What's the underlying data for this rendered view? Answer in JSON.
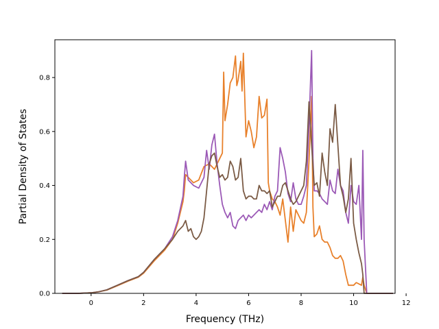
{
  "chart_data": {
    "type": "line",
    "title": "",
    "xlabel": "Frequency (THz)",
    "ylabel": "Partial Density of States",
    "xlim": [
      -1.38,
      11.58
    ],
    "ylim": [
      0,
      0.94
    ],
    "xticks": [
      0,
      2,
      4,
      6,
      8,
      10,
      12
    ],
    "yticks": [
      0.0,
      0.2,
      0.4,
      0.6,
      0.8
    ],
    "ytick_labels": [
      "0.0",
      "0.2",
      "0.4",
      "0.6",
      "0.8"
    ],
    "grid": false,
    "legend": "none",
    "series": [
      {
        "color": "#e8802a",
        "x": [
          -1.1,
          -0.5,
          0.0,
          0.3,
          0.6,
          1.0,
          1.4,
          1.8,
          2.0,
          2.4,
          2.8,
          3.1,
          3.3,
          3.5,
          3.55,
          3.6,
          3.7,
          3.9,
          4.1,
          4.3,
          4.5,
          4.7,
          4.9,
          5.0,
          5.05,
          5.1,
          5.2,
          5.3,
          5.4,
          5.5,
          5.55,
          5.6,
          5.7,
          5.75,
          5.8,
          5.9,
          6.0,
          6.1,
          6.2,
          6.3,
          6.4,
          6.5,
          6.6,
          6.7,
          6.75,
          6.8,
          6.9,
          7.0,
          7.1,
          7.2,
          7.3,
          7.4,
          7.5,
          7.6,
          7.7,
          7.8,
          7.9,
          8.0,
          8.1,
          8.2,
          8.3,
          8.4,
          8.45,
          8.5,
          8.6,
          8.7,
          8.8,
          8.9,
          9.0,
          9.1,
          9.2,
          9.3,
          9.4,
          9.5,
          9.6,
          9.7,
          9.8,
          9.9,
          10.0,
          10.1,
          10.2,
          10.3,
          10.35,
          10.4,
          10.5,
          10.6,
          11.0,
          11.5
        ],
        "y": [
          0.0,
          0.0,
          0.002,
          0.006,
          0.012,
          0.028,
          0.045,
          0.06,
          0.075,
          0.12,
          0.16,
          0.2,
          0.26,
          0.34,
          0.38,
          0.44,
          0.43,
          0.41,
          0.42,
          0.47,
          0.48,
          0.46,
          0.5,
          0.52,
          0.82,
          0.64,
          0.7,
          0.78,
          0.8,
          0.88,
          0.77,
          0.79,
          0.86,
          0.75,
          0.89,
          0.58,
          0.64,
          0.6,
          0.54,
          0.58,
          0.73,
          0.65,
          0.66,
          0.72,
          0.41,
          0.38,
          0.35,
          0.34,
          0.32,
          0.29,
          0.35,
          0.27,
          0.19,
          0.32,
          0.23,
          0.31,
          0.29,
          0.27,
          0.26,
          0.3,
          0.49,
          0.73,
          0.32,
          0.21,
          0.22,
          0.25,
          0.2,
          0.19,
          0.19,
          0.17,
          0.14,
          0.13,
          0.13,
          0.14,
          0.12,
          0.07,
          0.03,
          0.03,
          0.03,
          0.04,
          0.035,
          0.03,
          0.06,
          0.03,
          0.0,
          0.0,
          0.0,
          0.0
        ]
      },
      {
        "color": "#9b59b6",
        "x": [
          -1.1,
          -0.5,
          0.0,
          0.3,
          0.6,
          1.0,
          1.4,
          1.8,
          2.0,
          2.4,
          2.8,
          3.1,
          3.3,
          3.5,
          3.55,
          3.6,
          3.7,
          3.9,
          4.1,
          4.3,
          4.4,
          4.5,
          4.6,
          4.7,
          4.8,
          4.9,
          5.0,
          5.1,
          5.2,
          5.3,
          5.4,
          5.5,
          5.6,
          5.7,
          5.8,
          5.9,
          6.0,
          6.1,
          6.2,
          6.3,
          6.4,
          6.5,
          6.6,
          6.7,
          6.8,
          6.9,
          7.0,
          7.1,
          7.2,
          7.3,
          7.4,
          7.5,
          7.6,
          7.7,
          7.8,
          7.9,
          8.0,
          8.1,
          8.2,
          8.3,
          8.4,
          8.45,
          8.5,
          8.6,
          8.7,
          8.8,
          8.9,
          9.0,
          9.1,
          9.2,
          9.3,
          9.4,
          9.5,
          9.6,
          9.7,
          9.8,
          9.9,
          10.0,
          10.1,
          10.2,
          10.3,
          10.35,
          10.4,
          10.5,
          10.6,
          11.0,
          11.5
        ],
        "y": [
          0.0,
          0.0,
          0.002,
          0.006,
          0.013,
          0.03,
          0.047,
          0.062,
          0.078,
          0.125,
          0.165,
          0.21,
          0.27,
          0.36,
          0.43,
          0.49,
          0.42,
          0.4,
          0.39,
          0.43,
          0.53,
          0.46,
          0.55,
          0.59,
          0.48,
          0.4,
          0.33,
          0.3,
          0.28,
          0.3,
          0.25,
          0.24,
          0.27,
          0.28,
          0.29,
          0.27,
          0.29,
          0.28,
          0.29,
          0.3,
          0.31,
          0.3,
          0.33,
          0.31,
          0.34,
          0.31,
          0.36,
          0.38,
          0.54,
          0.5,
          0.45,
          0.37,
          0.34,
          0.41,
          0.35,
          0.33,
          0.33,
          0.36,
          0.4,
          0.62,
          0.9,
          0.5,
          0.38,
          0.38,
          0.37,
          0.35,
          0.34,
          0.33,
          0.42,
          0.38,
          0.37,
          0.46,
          0.4,
          0.38,
          0.3,
          0.26,
          0.4,
          0.34,
          0.33,
          0.4,
          0.2,
          0.53,
          0.2,
          0.0,
          0.0,
          0.0,
          0.0
        ]
      },
      {
        "color": "#7a5a44",
        "x": [
          -1.1,
          -0.5,
          0.0,
          0.3,
          0.6,
          1.0,
          1.4,
          1.8,
          2.0,
          2.4,
          2.8,
          3.1,
          3.3,
          3.5,
          3.55,
          3.6,
          3.7,
          3.8,
          3.9,
          4.0,
          4.1,
          4.2,
          4.3,
          4.4,
          4.5,
          4.6,
          4.7,
          4.8,
          4.9,
          5.0,
          5.1,
          5.2,
          5.3,
          5.4,
          5.5,
          5.6,
          5.7,
          5.8,
          5.9,
          6.0,
          6.1,
          6.2,
          6.3,
          6.4,
          6.5,
          6.6,
          6.7,
          6.8,
          6.9,
          7.0,
          7.1,
          7.2,
          7.3,
          7.4,
          7.5,
          7.6,
          7.7,
          7.8,
          7.9,
          8.0,
          8.1,
          8.2,
          8.3,
          8.4,
          8.5,
          8.6,
          8.7,
          8.8,
          8.9,
          9.0,
          9.1,
          9.2,
          9.3,
          9.4,
          9.5,
          9.6,
          9.7,
          9.8,
          9.9,
          10.0,
          10.1,
          10.2,
          10.3,
          10.35,
          10.4,
          10.5,
          10.6,
          11.0,
          11.5
        ],
        "y": [
          0.0,
          0.0,
          0.002,
          0.006,
          0.013,
          0.03,
          0.047,
          0.062,
          0.078,
          0.125,
          0.165,
          0.2,
          0.23,
          0.25,
          0.26,
          0.27,
          0.23,
          0.24,
          0.21,
          0.2,
          0.21,
          0.23,
          0.28,
          0.38,
          0.48,
          0.51,
          0.52,
          0.47,
          0.43,
          0.44,
          0.42,
          0.43,
          0.49,
          0.47,
          0.42,
          0.43,
          0.5,
          0.38,
          0.35,
          0.36,
          0.36,
          0.35,
          0.35,
          0.4,
          0.38,
          0.38,
          0.37,
          0.38,
          0.32,
          0.34,
          0.36,
          0.36,
          0.4,
          0.41,
          0.38,
          0.35,
          0.33,
          0.34,
          0.36,
          0.38,
          0.4,
          0.49,
          0.71,
          0.55,
          0.4,
          0.41,
          0.36,
          0.52,
          0.45,
          0.4,
          0.61,
          0.56,
          0.7,
          0.55,
          0.4,
          0.36,
          0.3,
          0.35,
          0.5,
          0.26,
          0.2,
          0.15,
          0.11,
          0.07,
          0.0,
          0.0,
          0.0,
          0.0,
          0.0
        ]
      }
    ]
  }
}
